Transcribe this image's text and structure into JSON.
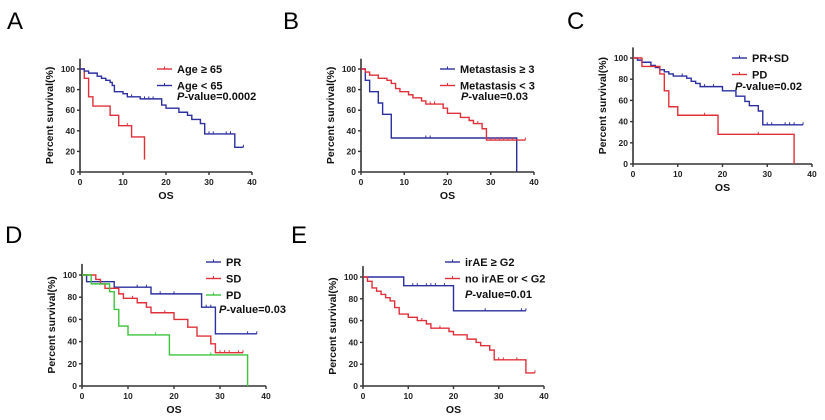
{
  "chart_data": [
    {
      "panel": "A",
      "type": "line",
      "subtype": "kaplan-meier step",
      "xlabel": "OS",
      "ylabel": "Percent survival(%)",
      "xlim": [
        0,
        40
      ],
      "ylim": [
        0,
        110
      ],
      "xticks": [
        "0",
        "10",
        "20",
        "30",
        "40"
      ],
      "yticks": [
        "0",
        "20",
        "40",
        "60",
        "80",
        "100"
      ],
      "pvalue_prefix": "P",
      "pvalue_text": "-value=0.0002",
      "legend_position": "top-right",
      "series": [
        {
          "name": "Age ≥ 65",
          "color": "#e0303a",
          "steps": [
            [
              0,
              100
            ],
            [
              1,
              91
            ],
            [
              2,
              73
            ],
            [
              3,
              64
            ],
            [
              7,
              55
            ],
            [
              9,
              45
            ],
            [
              12,
              34
            ],
            [
              15,
              12
            ]
          ],
          "end": 15,
          "censored": [
            11
          ]
        },
        {
          "name": "Age < 65",
          "color": "#2b2fa0",
          "steps": [
            [
              0,
              100
            ],
            [
              1,
              98
            ],
            [
              2,
              96
            ],
            [
              4,
              93
            ],
            [
              5,
              91
            ],
            [
              6,
              89
            ],
            [
              7,
              87
            ],
            [
              7.5,
              84
            ],
            [
              8,
              78
            ],
            [
              10,
              76
            ],
            [
              11,
              73
            ],
            [
              14,
              71
            ],
            [
              19,
              65
            ],
            [
              20,
              62
            ],
            [
              23,
              58
            ],
            [
              25,
              55
            ],
            [
              26,
              51
            ],
            [
              28,
              47
            ],
            [
              29,
              37
            ],
            [
              36,
              24
            ]
          ],
          "end": 38,
          "censored": [
            12,
            15,
            16,
            17,
            30,
            31,
            34,
            35,
            38
          ]
        }
      ]
    },
    {
      "panel": "B",
      "type": "line",
      "subtype": "kaplan-meier step",
      "xlabel": "OS",
      "ylabel": "Percent survival(%)",
      "xlim": [
        0,
        40
      ],
      "ylim": [
        0,
        110
      ],
      "xticks": [
        "0",
        "10",
        "20",
        "30",
        "40"
      ],
      "yticks": [
        "0",
        "20",
        "40",
        "60",
        "80",
        "100"
      ],
      "pvalue_prefix": "P",
      "pvalue_text": "-value=0.03",
      "legend_position": "top-right",
      "series": [
        {
          "name": "Metastasis ≥ 3",
          "color": "#2b2fa0",
          "steps": [
            [
              0,
              100
            ],
            [
              1,
              89
            ],
            [
              2,
              78
            ],
            [
              4,
              67
            ],
            [
              5,
              56
            ],
            [
              7,
              33
            ],
            [
              36,
              0
            ]
          ],
          "end": 36,
          "censored": [
            15,
            16
          ]
        },
        {
          "name": "Metastasis < 3",
          "color": "#e0303a",
          "steps": [
            [
              0,
              100
            ],
            [
              1,
              97
            ],
            [
              2,
              94
            ],
            [
              4,
              91
            ],
            [
              6,
              89
            ],
            [
              7,
              86
            ],
            [
              8,
              81
            ],
            [
              9,
              78
            ],
            [
              11,
              75
            ],
            [
              12,
              72
            ],
            [
              14,
              69
            ],
            [
              15,
              66
            ],
            [
              19,
              62
            ],
            [
              20,
              57
            ],
            [
              23,
              53
            ],
            [
              25,
              50
            ],
            [
              26,
              47
            ],
            [
              28,
              42
            ],
            [
              29,
              31
            ]
          ],
          "end": 38,
          "censored": [
            16,
            17,
            27,
            30,
            31,
            32,
            33,
            34,
            35,
            38
          ]
        }
      ]
    },
    {
      "panel": "C",
      "type": "line",
      "subtype": "kaplan-meier step",
      "xlabel": "OS",
      "ylabel": "Percent survival(%)",
      "xlim": [
        0,
        40
      ],
      "ylim": [
        0,
        110
      ],
      "xticks": [
        "0",
        "10",
        "20",
        "30",
        "40"
      ],
      "yticks": [
        "0",
        "20",
        "40",
        "60",
        "80",
        "100"
      ],
      "pvalue_prefix": "P",
      "pvalue_text": "-value=0.02",
      "legend_position": "top-right",
      "series": [
        {
          "name": "PR+SD",
          "color": "#2b2fa0",
          "steps": [
            [
              0,
              100
            ],
            [
              1,
              98
            ],
            [
              2,
              96
            ],
            [
              4,
              93
            ],
            [
              5,
              91
            ],
            [
              6,
              89
            ],
            [
              7,
              87
            ],
            [
              8,
              85
            ],
            [
              9,
              83
            ],
            [
              12,
              81
            ],
            [
              13,
              78
            ],
            [
              14,
              76
            ],
            [
              15,
              73
            ],
            [
              20,
              69
            ],
            [
              23,
              64
            ],
            [
              25,
              59
            ],
            [
              26,
              55
            ],
            [
              28,
              50
            ],
            [
              29,
              37
            ]
          ],
          "end": 38,
          "censored": [
            11,
            16,
            18,
            30,
            31,
            34,
            35,
            36,
            38
          ]
        },
        {
          "name": "PD",
          "color": "#e0303a",
          "steps": [
            [
              0,
              100
            ],
            [
              2,
              92
            ],
            [
              6,
              85
            ],
            [
              7,
              69
            ],
            [
              8,
              54
            ],
            [
              10,
              46
            ],
            [
              19,
              28
            ],
            [
              36,
              0
            ]
          ],
          "end": 36,
          "censored": [
            16,
            28
          ]
        }
      ]
    },
    {
      "panel": "D",
      "type": "line",
      "subtype": "kaplan-meier step",
      "xlabel": "OS",
      "ylabel": "Percent survival(%)",
      "xlim": [
        0,
        40
      ],
      "ylim": [
        0,
        110
      ],
      "xticks": [
        "0",
        "10",
        "20",
        "30",
        "40"
      ],
      "yticks": [
        "0",
        "20",
        "40",
        "60",
        "80",
        "100"
      ],
      "pvalue_prefix": "P",
      "pvalue_text": "-value=0.03",
      "legend_position": "top-right",
      "series": [
        {
          "name": "PR",
          "color": "#2b2fa0",
          "steps": [
            [
              0,
              100
            ],
            [
              1,
              94
            ],
            [
              7,
              89
            ],
            [
              15,
              83
            ],
            [
              26,
              71
            ],
            [
              29,
              47
            ]
          ],
          "end": 38,
          "censored": [
            12,
            14,
            17,
            20,
            27,
            28,
            36,
            38
          ]
        },
        {
          "name": "SD",
          "color": "#e0303a",
          "steps": [
            [
              0,
              100
            ],
            [
              3,
              96
            ],
            [
              4,
              92
            ],
            [
              5,
              88
            ],
            [
              8,
              83
            ],
            [
              9,
              79
            ],
            [
              12,
              75
            ],
            [
              14,
              71
            ],
            [
              15,
              66
            ],
            [
              20,
              60
            ],
            [
              23,
              53
            ],
            [
              25,
              45
            ],
            [
              28,
              38
            ],
            [
              29,
              30
            ]
          ],
          "end": 35,
          "censored": [
            11,
            18,
            30,
            31,
            32,
            34,
            35
          ]
        },
        {
          "name": "PD",
          "color": "#3cc43c",
          "steps": [
            [
              0,
              100
            ],
            [
              2,
              92
            ],
            [
              6,
              85
            ],
            [
              7,
              69
            ],
            [
              8,
              54
            ],
            [
              10,
              46
            ],
            [
              19,
              28
            ],
            [
              36,
              0
            ]
          ],
          "end": 36,
          "censored": [
            16,
            28
          ]
        }
      ]
    },
    {
      "panel": "E",
      "type": "line",
      "subtype": "kaplan-meier step",
      "xlabel": "OS",
      "ylabel": "Percent survival(%)",
      "xlim": [
        0,
        40
      ],
      "ylim": [
        0,
        110
      ],
      "xticks": [
        "0",
        "10",
        "20",
        "30",
        "40"
      ],
      "yticks": [
        "0",
        "20",
        "40",
        "60",
        "80",
        "100"
      ],
      "pvalue_prefix": "P",
      "pvalue_text": "-value=0.01",
      "legend_position": "top-right",
      "series": [
        {
          "name": "irAE ≥ G2",
          "color": "#2b2fa0",
          "steps": [
            [
              0,
              100
            ],
            [
              9,
              92
            ],
            [
              20,
              69
            ]
          ],
          "end": 36,
          "censored": [
            11,
            12,
            14,
            15,
            16,
            18,
            27,
            35,
            36
          ]
        },
        {
          "name": "no irAE or < G2",
          "color": "#e0303a",
          "steps": [
            [
              0,
              100
            ],
            [
              1,
              96
            ],
            [
              2,
              90
            ],
            [
              3,
              87
            ],
            [
              4,
              84
            ],
            [
              5,
              81
            ],
            [
              6,
              78
            ],
            [
              7,
              72
            ],
            [
              8,
              66
            ],
            [
              10,
              63
            ],
            [
              12,
              60
            ],
            [
              14,
              57
            ],
            [
              15,
              53
            ],
            [
              19,
              50
            ],
            [
              20,
              47
            ],
            [
              23,
              43
            ],
            [
              25,
              40
            ],
            [
              26,
              37
            ],
            [
              28,
              33
            ],
            [
              29,
              24
            ],
            [
              36,
              12
            ]
          ],
          "end": 38,
          "censored": [
            13,
            17,
            30,
            31,
            34,
            38
          ]
        }
      ]
    }
  ]
}
